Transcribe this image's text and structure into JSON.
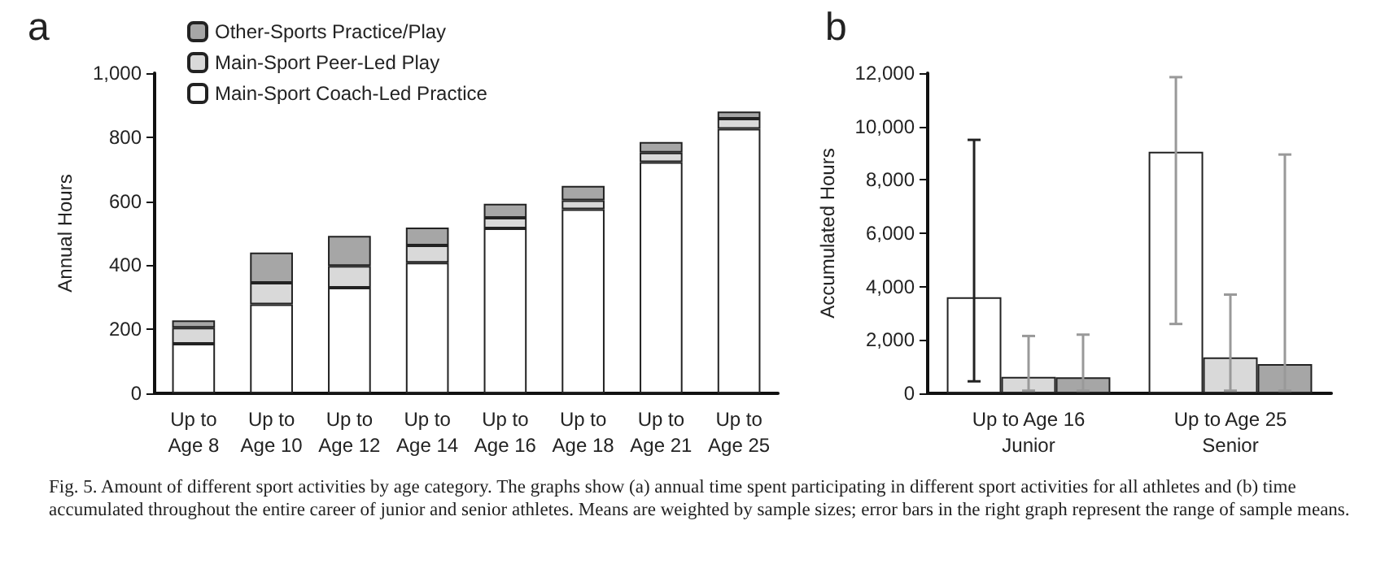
{
  "chart_data": [
    {
      "type": "bar",
      "title": "a",
      "ylabel": "Annual Hours",
      "stacked": true,
      "legend": "top left",
      "grid": false,
      "categories": [
        "Up to\nAge 8",
        "Up to\nAge 10",
        "Up to\nAge 12",
        "Up to\nAge 14",
        "Up to\nAge 16",
        "Up to\nAge 18",
        "Up to\nAge 21",
        "Up to\nAge 25"
      ],
      "ylim": [
        0,
        1000
      ],
      "yticks": [
        0,
        200,
        400,
        600,
        800,
        {
          "value": 1000,
          "label": "1,000"
        }
      ],
      "series": [
        {
          "name": "Main-Sport Coach-Led Practice",
          "color": "#ffffff",
          "values": [
            155,
            278,
            330,
            408,
            515,
            575,
            722,
            826
          ]
        },
        {
          "name": "Main-Sport Peer-Led Play",
          "color": "#d9d9d9",
          "values": [
            50,
            67,
            68,
            54,
            33,
            28,
            30,
            32
          ]
        },
        {
          "name": "Other-Sports Practice/Play",
          "color": "#a6a6a6",
          "values": [
            23,
            95,
            94,
            56,
            44,
            45,
            33,
            22
          ]
        }
      ]
    },
    {
      "type": "bar",
      "title": "b",
      "ylabel": "Accumulated Hours",
      "grid": false,
      "categories": [
        "Up to Age 16\nJunior",
        "Up to Age 25\nSenior"
      ],
      "ylim": [
        0,
        12000
      ],
      "yticks": [
        0,
        {
          "value": 2000,
          "label": "2,000"
        },
        {
          "value": 4000,
          "label": "4,000"
        },
        {
          "value": 6000,
          "label": "6,000"
        },
        {
          "value": 8000,
          "label": "8,000"
        },
        {
          "value": 10000,
          "label": "10,000"
        },
        {
          "value": 12000,
          "label": "12,000"
        }
      ],
      "series": [
        {
          "color": "#ffffff",
          "values": [
            3600,
            9050
          ],
          "errors": [
            [
              450,
              9500
            ],
            [
              2600,
              11850
            ]
          ]
        },
        {
          "color": "#d9d9d9",
          "values": [
            620,
            1350
          ],
          "errors": [
            [
              100,
              2150
            ],
            [
              100,
              3700
            ]
          ]
        },
        {
          "color": "#a6a6a6",
          "values": [
            600,
            1100
          ],
          "errors": [
            [
              100,
              2200
            ],
            [
              100,
              8950
            ]
          ]
        }
      ],
      "annotations": [
        "Fig. 5. Amount of different sport activities by age category. The graphs show (a) annual time spent participating in different sport activities for all athletes and (b) time accumulated throughout the entire career of junior and senior athletes. Means are weighted by sample sizes; error bars in the right graph represent the range of sample means."
      ]
    }
  ]
}
